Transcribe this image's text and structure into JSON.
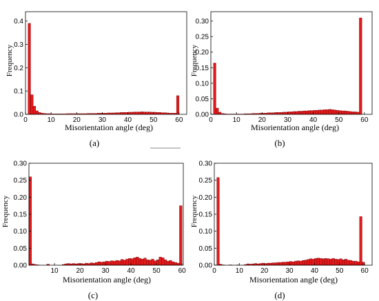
{
  "colors": {
    "bar_fill": "#e31a1c",
    "bar_edge": "#6b0000",
    "axis": "#000000"
  },
  "decor_line_color": "#888888",
  "chart_data": [
    {
      "panel": "(a)",
      "type": "bar",
      "xlabel": "Misorientation angle (deg)",
      "ylabel": "Frequency",
      "xlim": [
        0,
        63
      ],
      "ylim": [
        0,
        0.44
      ],
      "xticks": [
        0,
        10,
        20,
        30,
        40,
        50,
        60
      ],
      "yticks": [
        0.0,
        0.1,
        0.2,
        0.3,
        0.4
      ],
      "ytick_labels": [
        "0.0",
        "0.1",
        "0.2",
        "0.3",
        "0.4"
      ],
      "bin_start": 0,
      "bin_width": 1,
      "values": [
        0.0,
        0.39,
        0.084,
        0.035,
        0.015,
        0.008,
        0.005,
        0.004,
        0.003,
        0.003,
        0.002,
        0.002,
        0.002,
        0.002,
        0.002,
        0.002,
        0.003,
        0.003,
        0.003,
        0.003,
        0.003,
        0.003,
        0.003,
        0.003,
        0.004,
        0.004,
        0.004,
        0.004,
        0.005,
        0.005,
        0.005,
        0.005,
        0.006,
        0.006,
        0.006,
        0.007,
        0.007,
        0.008,
        0.008,
        0.008,
        0.009,
        0.009,
        0.01,
        0.01,
        0.01,
        0.011,
        0.01,
        0.01,
        0.01,
        0.009,
        0.009,
        0.008,
        0.008,
        0.007,
        0.007,
        0.006,
        0.005,
        0.005,
        0.005,
        0.08,
        0.0,
        0.0,
        0.0
      ]
    },
    {
      "panel": "(b)",
      "type": "bar",
      "xlabel": "Misorientation angle (deg)",
      "ylabel": "Frequency",
      "xlim": [
        0,
        63
      ],
      "ylim": [
        0,
        0.33
      ],
      "xticks": [
        0,
        10,
        20,
        30,
        40,
        50,
        60
      ],
      "yticks": [
        0.0,
        0.05,
        0.1,
        0.15,
        0.2,
        0.25,
        0.3
      ],
      "ytick_labels": [
        "0.00",
        "0.05",
        "0.10",
        "0.15",
        "0.20",
        "0.25",
        "0.30"
      ],
      "bin_start": 0,
      "bin_width": 1,
      "values": [
        0.0,
        0.165,
        0.02,
        0.007,
        0.003,
        0.002,
        0.001,
        0.001,
        0.001,
        0.001,
        0.001,
        0.001,
        0.001,
        0.002,
        0.002,
        0.002,
        0.003,
        0.003,
        0.003,
        0.004,
        0.004,
        0.004,
        0.005,
        0.005,
        0.005,
        0.006,
        0.006,
        0.006,
        0.007,
        0.007,
        0.008,
        0.008,
        0.009,
        0.009,
        0.01,
        0.01,
        0.011,
        0.011,
        0.012,
        0.012,
        0.013,
        0.013,
        0.014,
        0.014,
        0.015,
        0.015,
        0.016,
        0.015,
        0.014,
        0.013,
        0.012,
        0.011,
        0.011,
        0.01,
        0.009,
        0.008,
        0.008,
        0.007,
        0.31,
        0.0,
        0.0,
        0.0,
        0.0
      ]
    },
    {
      "panel": "(c)",
      "type": "bar",
      "xlabel": "Misorientation angle (deg)",
      "ylabel": "Frequency",
      "xlim": [
        0,
        60.5
      ],
      "ylim": [
        0,
        0.3
      ],
      "xticks": [
        10,
        20,
        30,
        40,
        50,
        60
      ],
      "yticks": [
        0.0,
        0.05,
        0.1,
        0.15,
        0.2,
        0.25,
        0.3
      ],
      "ytick_labels": [
        "0.00",
        "0.05",
        "0.10",
        "0.15",
        "0.20",
        "0.25",
        "0.30"
      ],
      "bin_start": 0,
      "bin_width": 1,
      "values": [
        0.26,
        0.004,
        0.002,
        0.001,
        0.0,
        0.0,
        0.0,
        0.003,
        0.0,
        0.0,
        0.0,
        0.0,
        0.0,
        0.002,
        0.004,
        0.005,
        0.004,
        0.005,
        0.004,
        0.005,
        0.005,
        0.004,
        0.006,
        0.005,
        0.007,
        0.006,
        0.008,
        0.01,
        0.009,
        0.01,
        0.012,
        0.011,
        0.013,
        0.012,
        0.014,
        0.013,
        0.017,
        0.015,
        0.018,
        0.02,
        0.019,
        0.022,
        0.024,
        0.02,
        0.018,
        0.021,
        0.016,
        0.015,
        0.018,
        0.013,
        0.016,
        0.024,
        0.022,
        0.016,
        0.012,
        0.014,
        0.01,
        0.008,
        0.006,
        0.175
      ]
    },
    {
      "panel": "(d)",
      "type": "bar",
      "xlabel": "Misorientation angle (deg)",
      "ylabel": "Frequency",
      "xlim": [
        0,
        63
      ],
      "ylim": [
        0,
        0.3
      ],
      "xticks": [
        0,
        10,
        20,
        30,
        40,
        50,
        60
      ],
      "yticks": [
        0.0,
        0.05,
        0.1,
        0.15,
        0.2,
        0.25,
        0.3
      ],
      "ytick_labels": [
        "0.00",
        "0.05",
        "0.10",
        "0.15",
        "0.20",
        "0.25",
        "0.30"
      ],
      "bin_start": 0,
      "bin_width": 1,
      "values": [
        0.0,
        0.258,
        0.003,
        0.001,
        0.0,
        0.0,
        0.001,
        0.0,
        0.0,
        0.001,
        0.0,
        0.0,
        0.002,
        0.004,
        0.003,
        0.004,
        0.005,
        0.004,
        0.005,
        0.006,
        0.005,
        0.006,
        0.006,
        0.007,
        0.007,
        0.008,
        0.008,
        0.009,
        0.009,
        0.01,
        0.011,
        0.01,
        0.012,
        0.013,
        0.012,
        0.014,
        0.015,
        0.017,
        0.019,
        0.018,
        0.02,
        0.021,
        0.02,
        0.019,
        0.02,
        0.019,
        0.018,
        0.02,
        0.018,
        0.017,
        0.019,
        0.016,
        0.018,
        0.015,
        0.014,
        0.012,
        0.012,
        0.01,
        0.143,
        0.009,
        0.0,
        0.0,
        0.0
      ]
    }
  ]
}
